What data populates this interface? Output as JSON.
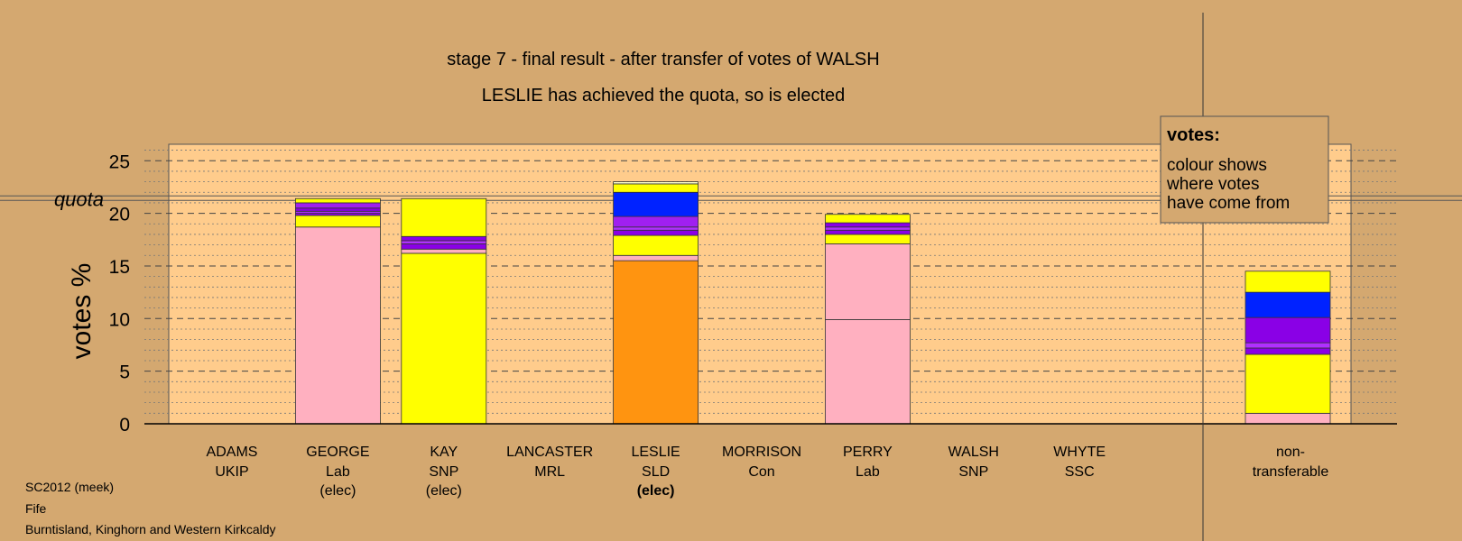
{
  "chart_data": {
    "type": "bar",
    "stacked": true,
    "title": "stage 7 - final result - after transfer of votes of WALSH",
    "subtitle": "LESLIE has achieved the quota, so is elected",
    "ylabel": "votes %",
    "ylim": [
      0,
      26
    ],
    "yticks": [
      0,
      5,
      10,
      15,
      20,
      25
    ],
    "quota_label": "quota",
    "quota": 21.4,
    "candidates": [
      {
        "name": "ADAMS",
        "party": "UKIP",
        "status": "",
        "status_bold": false,
        "segments": []
      },
      {
        "name": "GEORGE",
        "party": "Lab",
        "status": "(elec)",
        "status_bold": false,
        "segments": [
          {
            "value": 18.7,
            "color": "#ffb0c0"
          },
          {
            "value": 1.1,
            "color": "#ffff00"
          },
          {
            "value": 0.2,
            "color": "#8a00e6"
          },
          {
            "value": 0.2,
            "color": "#b030ff"
          },
          {
            "value": 0.3,
            "color": "#8a00e6"
          },
          {
            "value": 0.5,
            "color": "#a020f0"
          },
          {
            "value": 0.4,
            "color": "#ffff00"
          }
        ]
      },
      {
        "name": "KAY",
        "party": "SNP",
        "status": "(elec)",
        "status_bold": false,
        "segments": [
          {
            "value": 16.2,
            "color": "#ffff00"
          },
          {
            "value": 0.4,
            "color": "#ffb0c0"
          },
          {
            "value": 0.5,
            "color": "#8a00e6"
          },
          {
            "value": 0.3,
            "color": "#b030ff"
          },
          {
            "value": 0.4,
            "color": "#8a00e6"
          },
          {
            "value": 3.6,
            "color": "#ffff00"
          }
        ]
      },
      {
        "name": "LANCASTER",
        "party": "MRL",
        "status": "",
        "status_bold": false,
        "segments": []
      },
      {
        "name": "LESLIE",
        "party": "SLD",
        "status": "(elec)",
        "status_bold": true,
        "segments": [
          {
            "value": 15.5,
            "color": "#ff9410"
          },
          {
            "value": 0.5,
            "color": "#ffb0c0"
          },
          {
            "value": 1.9,
            "color": "#ffff00"
          },
          {
            "value": 0.5,
            "color": "#8a00e6"
          },
          {
            "value": 0.3,
            "color": "#b030ff"
          },
          {
            "value": 1.0,
            "color": "#a020f0"
          },
          {
            "value": 2.3,
            "color": "#0022ff"
          },
          {
            "value": 0.8,
            "color": "#ffff00"
          },
          {
            "value": 0.2,
            "color": "#ffffcc"
          }
        ]
      },
      {
        "name": "MORRISON",
        "party": "Con",
        "status": "",
        "status_bold": false,
        "segments": []
      },
      {
        "name": "PERRY",
        "party": "Lab",
        "status": "",
        "status_bold": false,
        "segments": [
          {
            "value": 9.9,
            "color": "#ffb0c0"
          },
          {
            "value": 7.2,
            "color": "#ffb0c0"
          },
          {
            "value": 0.9,
            "color": "#ffff00"
          },
          {
            "value": 0.4,
            "color": "#8a00e6"
          },
          {
            "value": 0.3,
            "color": "#b030ff"
          },
          {
            "value": 0.4,
            "color": "#8a00e6"
          },
          {
            "value": 0.8,
            "color": "#ffff00"
          }
        ]
      },
      {
        "name": "WALSH",
        "party": "SNP",
        "status": "",
        "status_bold": false,
        "segments": []
      },
      {
        "name": "WHYTE",
        "party": "SSC",
        "status": "",
        "status_bold": false,
        "segments": []
      }
    ],
    "nontransferable": {
      "label_line1": "non-",
      "label_line2": "transferable",
      "segments": [
        {
          "value": 1.0,
          "color": "#ffb0c0"
        },
        {
          "value": 5.6,
          "color": "#ffff00"
        },
        {
          "value": 0.6,
          "color": "#8a00e6"
        },
        {
          "value": 0.5,
          "color": "#b030ff"
        },
        {
          "value": 2.4,
          "color": "#8a00e6"
        },
        {
          "value": 2.4,
          "color": "#0022ff"
        },
        {
          "value": 2.0,
          "color": "#ffff00"
        }
      ]
    },
    "legend": {
      "title": "votes:",
      "lines": [
        "colour shows",
        "where votes",
        "have come from"
      ]
    }
  },
  "footer": {
    "line1": "SC2012 (meek)",
    "line2": "Fife",
    "line3": "Burntisland, Kinghorn and Western Kirkcaldy"
  },
  "colors": {
    "background": "#d4a870",
    "plot_area": "#ffcc8c"
  }
}
